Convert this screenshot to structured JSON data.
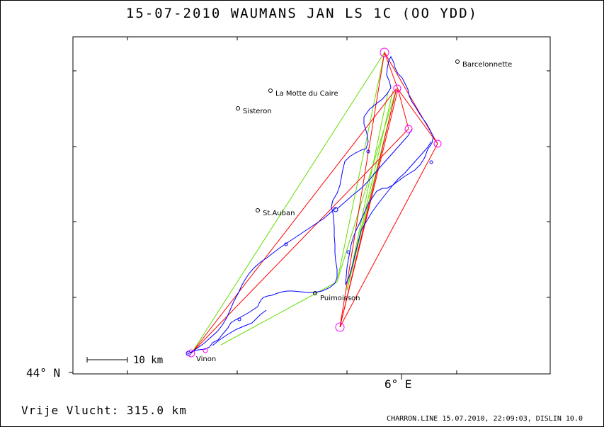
{
  "title": "15-07-2010   WAUMANS JAN   LS 1C (OO YDD)",
  "axes": {
    "lat_label": "44° N",
    "lon_label": "6° E"
  },
  "scale_bar": {
    "label": "10 km"
  },
  "places": [
    {
      "name": "Barcelonnette"
    },
    {
      "name": "La Motte du Caire"
    },
    {
      "name": "Sisteron"
    },
    {
      "name": "St.Auban"
    },
    {
      "name": "Puimoisson"
    },
    {
      "name": "Vinon"
    }
  ],
  "distance_text": "Vrije Vlucht:  315.0 km",
  "footer_text": "CHARRON.LINE 15.07.2010, 22:09:03, DISLIN 10.0",
  "colors": {
    "track": "#0000ff",
    "task_red": "#ff0000",
    "task_green": "#66dd00",
    "turnpoint": "#ff00ff",
    "frame": "#000000"
  }
}
